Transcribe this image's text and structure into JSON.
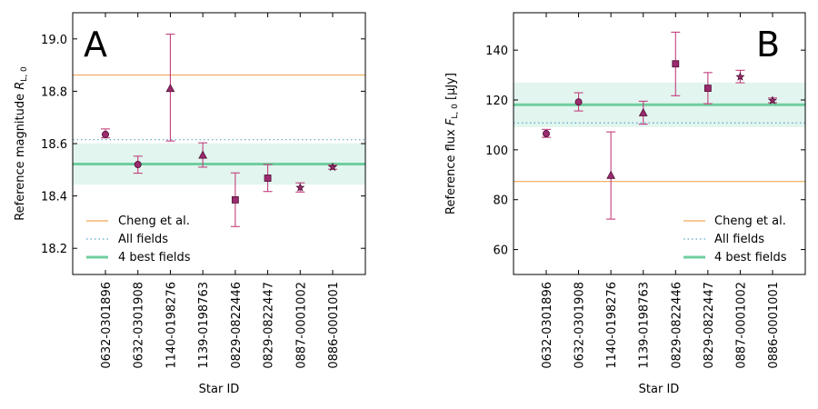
{
  "chart_data": [
    {
      "type": "scatter",
      "panel_label": "A",
      "ylabel": "Reference magnitude R_L,0",
      "ylabel_main": "Reference magnitude ",
      "ylabel_sym": "R",
      "ylabel_sub": "L, 0",
      "xlabel": "Star ID",
      "ylim": [
        18.1,
        19.1
      ],
      "yticks": [
        18.2,
        18.4,
        18.6,
        18.8,
        19.0
      ],
      "ytick_labels": [
        "18.2",
        "18.4",
        "18.6",
        "18.8",
        "19.0"
      ],
      "categories": [
        "0632-0301896",
        "0632-0301908",
        "1140-0198276",
        "1139-0198763",
        "0829-0822446",
        "0829-0822447",
        "0887-0001002",
        "0886-0001001"
      ],
      "markers": [
        "circle",
        "circle",
        "triangle",
        "triangle",
        "square",
        "square",
        "star",
        "star"
      ],
      "values": [
        18.635,
        18.52,
        18.81,
        18.555,
        18.385,
        18.468,
        18.432,
        18.51
      ],
      "err_low": [
        18.622,
        18.487,
        18.61,
        18.51,
        18.283,
        18.417,
        18.415,
        18.502
      ],
      "err_high": [
        18.656,
        18.552,
        19.018,
        18.603,
        18.488,
        18.52,
        18.45,
        18.518
      ],
      "reference_lines": [
        {
          "name": "Cheng et al.",
          "value": 18.862,
          "style": "solid",
          "color": "#f2a65a"
        },
        {
          "name": "All fields",
          "value": 18.615,
          "style": "dotted",
          "color": "#5aa6c8"
        },
        {
          "name": "4 best fields",
          "value": 18.522,
          "style": "solid-thick",
          "color": "#6fcf9e",
          "band": [
            18.443,
            18.601
          ]
        }
      ],
      "legend_position": "bottom-left"
    },
    {
      "type": "scatter",
      "panel_label": "B",
      "ylabel": "Reference flux F_L,0 [μJy]",
      "ylabel_main": "Reference flux ",
      "ylabel_sym": "F",
      "ylabel_sub": "L, 0",
      "ylabel_unit": " [μJy]",
      "xlabel": "Star ID",
      "ylim": [
        50,
        155
      ],
      "yticks": [
        60,
        80,
        100,
        120,
        140
      ],
      "ytick_labels": [
        "60",
        "80",
        "100",
        "120",
        "140"
      ],
      "categories": [
        "0632-0301896",
        "0632-0301908",
        "1140-0198276",
        "1139-0198763",
        "0829-0822446",
        "0829-0822447",
        "0887-0001002",
        "0886-0001001"
      ],
      "markers": [
        "circle",
        "circle",
        "triangle",
        "triangle",
        "square",
        "square",
        "star",
        "star"
      ],
      "values": [
        106.5,
        119.2,
        89.7,
        114.8,
        134.5,
        124.7,
        129.3,
        119.8
      ],
      "err_low": [
        105.0,
        115.6,
        72.2,
        110.3,
        121.7,
        118.5,
        126.9,
        118.9
      ],
      "err_high": [
        108.2,
        122.9,
        107.2,
        119.5,
        147.2,
        131.0,
        131.9,
        120.8
      ],
      "reference_lines": [
        {
          "name": "Cheng et al.",
          "value": 87.3,
          "style": "solid",
          "color": "#f2a65a"
        },
        {
          "name": "All fields",
          "value": 110.8,
          "style": "dotted",
          "color": "#5aa6c8"
        },
        {
          "name": "4 best fields",
          "value": 118.1,
          "style": "solid-thick",
          "color": "#6fcf9e",
          "band": [
            109.1,
            127.0
          ]
        }
      ],
      "legend_position": "bottom-right"
    }
  ],
  "colors": {
    "marker_fill": "#9b2a6e",
    "marker_edge": "#4a0f33",
    "errorbar": "#c2407e",
    "band": "#e2f5ef"
  }
}
